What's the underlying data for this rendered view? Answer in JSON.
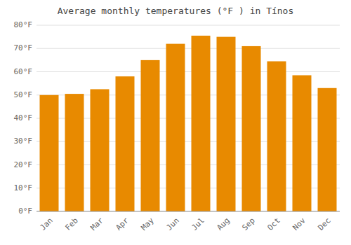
{
  "chart_data": {
    "type": "bar",
    "title": "Average monthly temperatures (°F ) in Tínos",
    "categories": [
      "Jan",
      "Feb",
      "Mar",
      "Apr",
      "May",
      "Jun",
      "Jul",
      "Aug",
      "Sep",
      "Oct",
      "Nov",
      "Dec"
    ],
    "values": [
      50,
      50.5,
      52.5,
      58,
      65,
      72,
      75.5,
      75,
      71,
      64.5,
      58.5,
      53
    ],
    "color": "#E88A00",
    "ylim": [
      0,
      80
    ],
    "yticks": [
      {
        "value": 0,
        "label": "0°F"
      },
      {
        "value": 10,
        "label": "10°F"
      },
      {
        "value": 20,
        "label": "20°F"
      },
      {
        "value": 30,
        "label": "30°F"
      },
      {
        "value": 40,
        "label": "40°F"
      },
      {
        "value": 50,
        "label": "50°F"
      },
      {
        "value": 60,
        "label": "60°F"
      },
      {
        "value": 70,
        "label": "70°F"
      },
      {
        "value": 80,
        "label": "80°F"
      }
    ],
    "grid": true
  }
}
